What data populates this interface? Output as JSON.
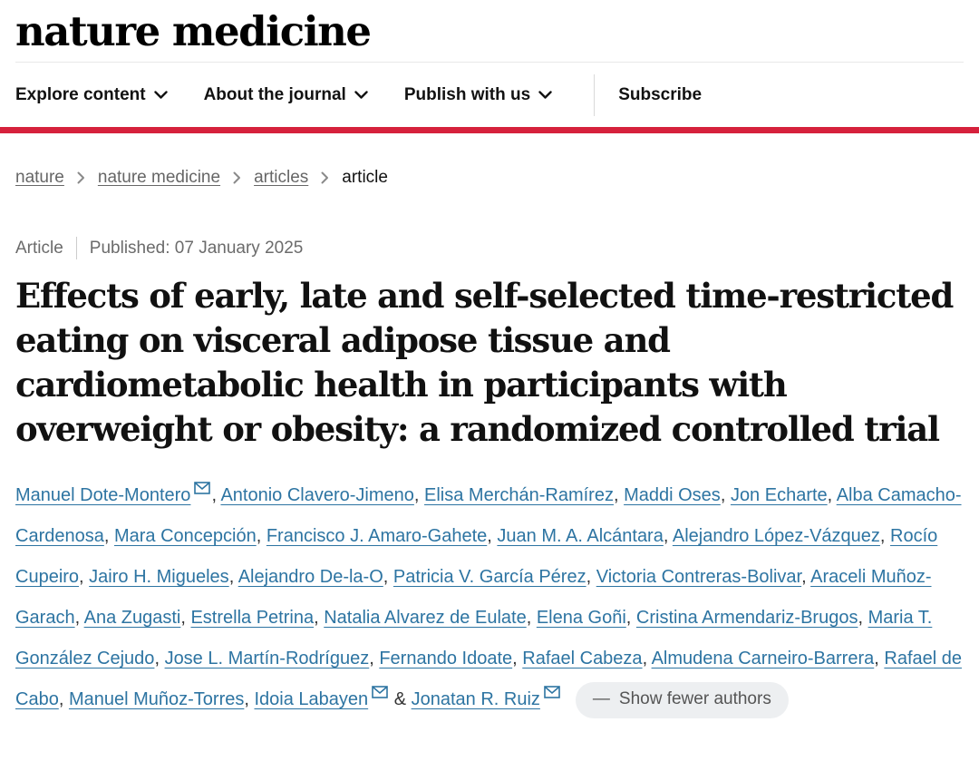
{
  "header": {
    "logo_text": "nature medicine"
  },
  "nav": {
    "items": [
      {
        "label": "Explore content",
        "has_dropdown": true
      },
      {
        "label": "About the journal",
        "has_dropdown": true
      },
      {
        "label": "Publish with us",
        "has_dropdown": true
      }
    ],
    "subscribe_label": "Subscribe"
  },
  "breadcrumb": {
    "items": [
      {
        "label": "nature",
        "link": true
      },
      {
        "label": "nature medicine",
        "link": true
      },
      {
        "label": "articles",
        "link": true
      },
      {
        "label": "article",
        "link": false
      }
    ]
  },
  "article_meta": {
    "type_label": "Article",
    "published_text": "Published: 07 January 2025"
  },
  "title": "Effects of early, late and self-selected time-restricted eating on visceral adipose tissue and cardiometabolic health in participants with overweight or obesity: a randomized controlled trial",
  "authors": {
    "items": [
      {
        "name": "Manuel Dote-Montero",
        "email": true
      },
      {
        "name": "Antonio Clavero-Jimeno",
        "email": false
      },
      {
        "name": "Elisa Merchán-Ramírez",
        "email": false
      },
      {
        "name": "Maddi Oses",
        "email": false
      },
      {
        "name": "Jon Echarte",
        "email": false
      },
      {
        "name": "Alba Camacho-Cardenosa",
        "email": false
      },
      {
        "name": "Mara Concepción",
        "email": false
      },
      {
        "name": "Francisco J. Amaro-Gahete",
        "email": false
      },
      {
        "name": "Juan M. A. Alcántara",
        "email": false
      },
      {
        "name": "Alejandro López-Vázquez",
        "email": false
      },
      {
        "name": "Rocío Cupeiro",
        "email": false
      },
      {
        "name": "Jairo H. Migueles",
        "email": false
      },
      {
        "name": "Alejandro De-la-O",
        "email": false
      },
      {
        "name": "Patricia V. García Pérez",
        "email": false
      },
      {
        "name": "Victoria Contreras-Bolivar",
        "email": false
      },
      {
        "name": "Araceli Muñoz-Garach",
        "email": false
      },
      {
        "name": "Ana Zugasti",
        "email": false
      },
      {
        "name": "Estrella Petrina",
        "email": false
      },
      {
        "name": "Natalia Alvarez de Eulate",
        "email": false
      },
      {
        "name": "Elena Goñi",
        "email": false
      },
      {
        "name": "Cristina Armendariz-Brugos",
        "email": false
      },
      {
        "name": "Maria T. González Cejudo",
        "email": false
      },
      {
        "name": "Jose L. Martín-Rodríguez",
        "email": false
      },
      {
        "name": "Fernando Idoate",
        "email": false
      },
      {
        "name": "Rafael Cabeza",
        "email": false
      },
      {
        "name": "Almudena Carneiro-Barrera",
        "email": false
      },
      {
        "name": "Rafael de Cabo",
        "email": false
      },
      {
        "name": "Manuel Muñoz-Torres",
        "email": false
      },
      {
        "name": "Idoia Labayen",
        "email": true
      },
      {
        "name": "Jonatan R. Ruiz",
        "email": true
      }
    ],
    "conjunction": "&",
    "show_fewer": {
      "minus_icon": "—",
      "label": "Show fewer authors"
    }
  },
  "icons": {
    "chevron_down": "⌄",
    "chevron_right": "›",
    "email": "✉",
    "minus": "—"
  },
  "colors": {
    "accent_red": "#d6213c",
    "link_blue": "#2d74a2",
    "muted_gray": "#6b6b6b",
    "pill_bg": "#edeff1",
    "pill_text": "#555555"
  }
}
